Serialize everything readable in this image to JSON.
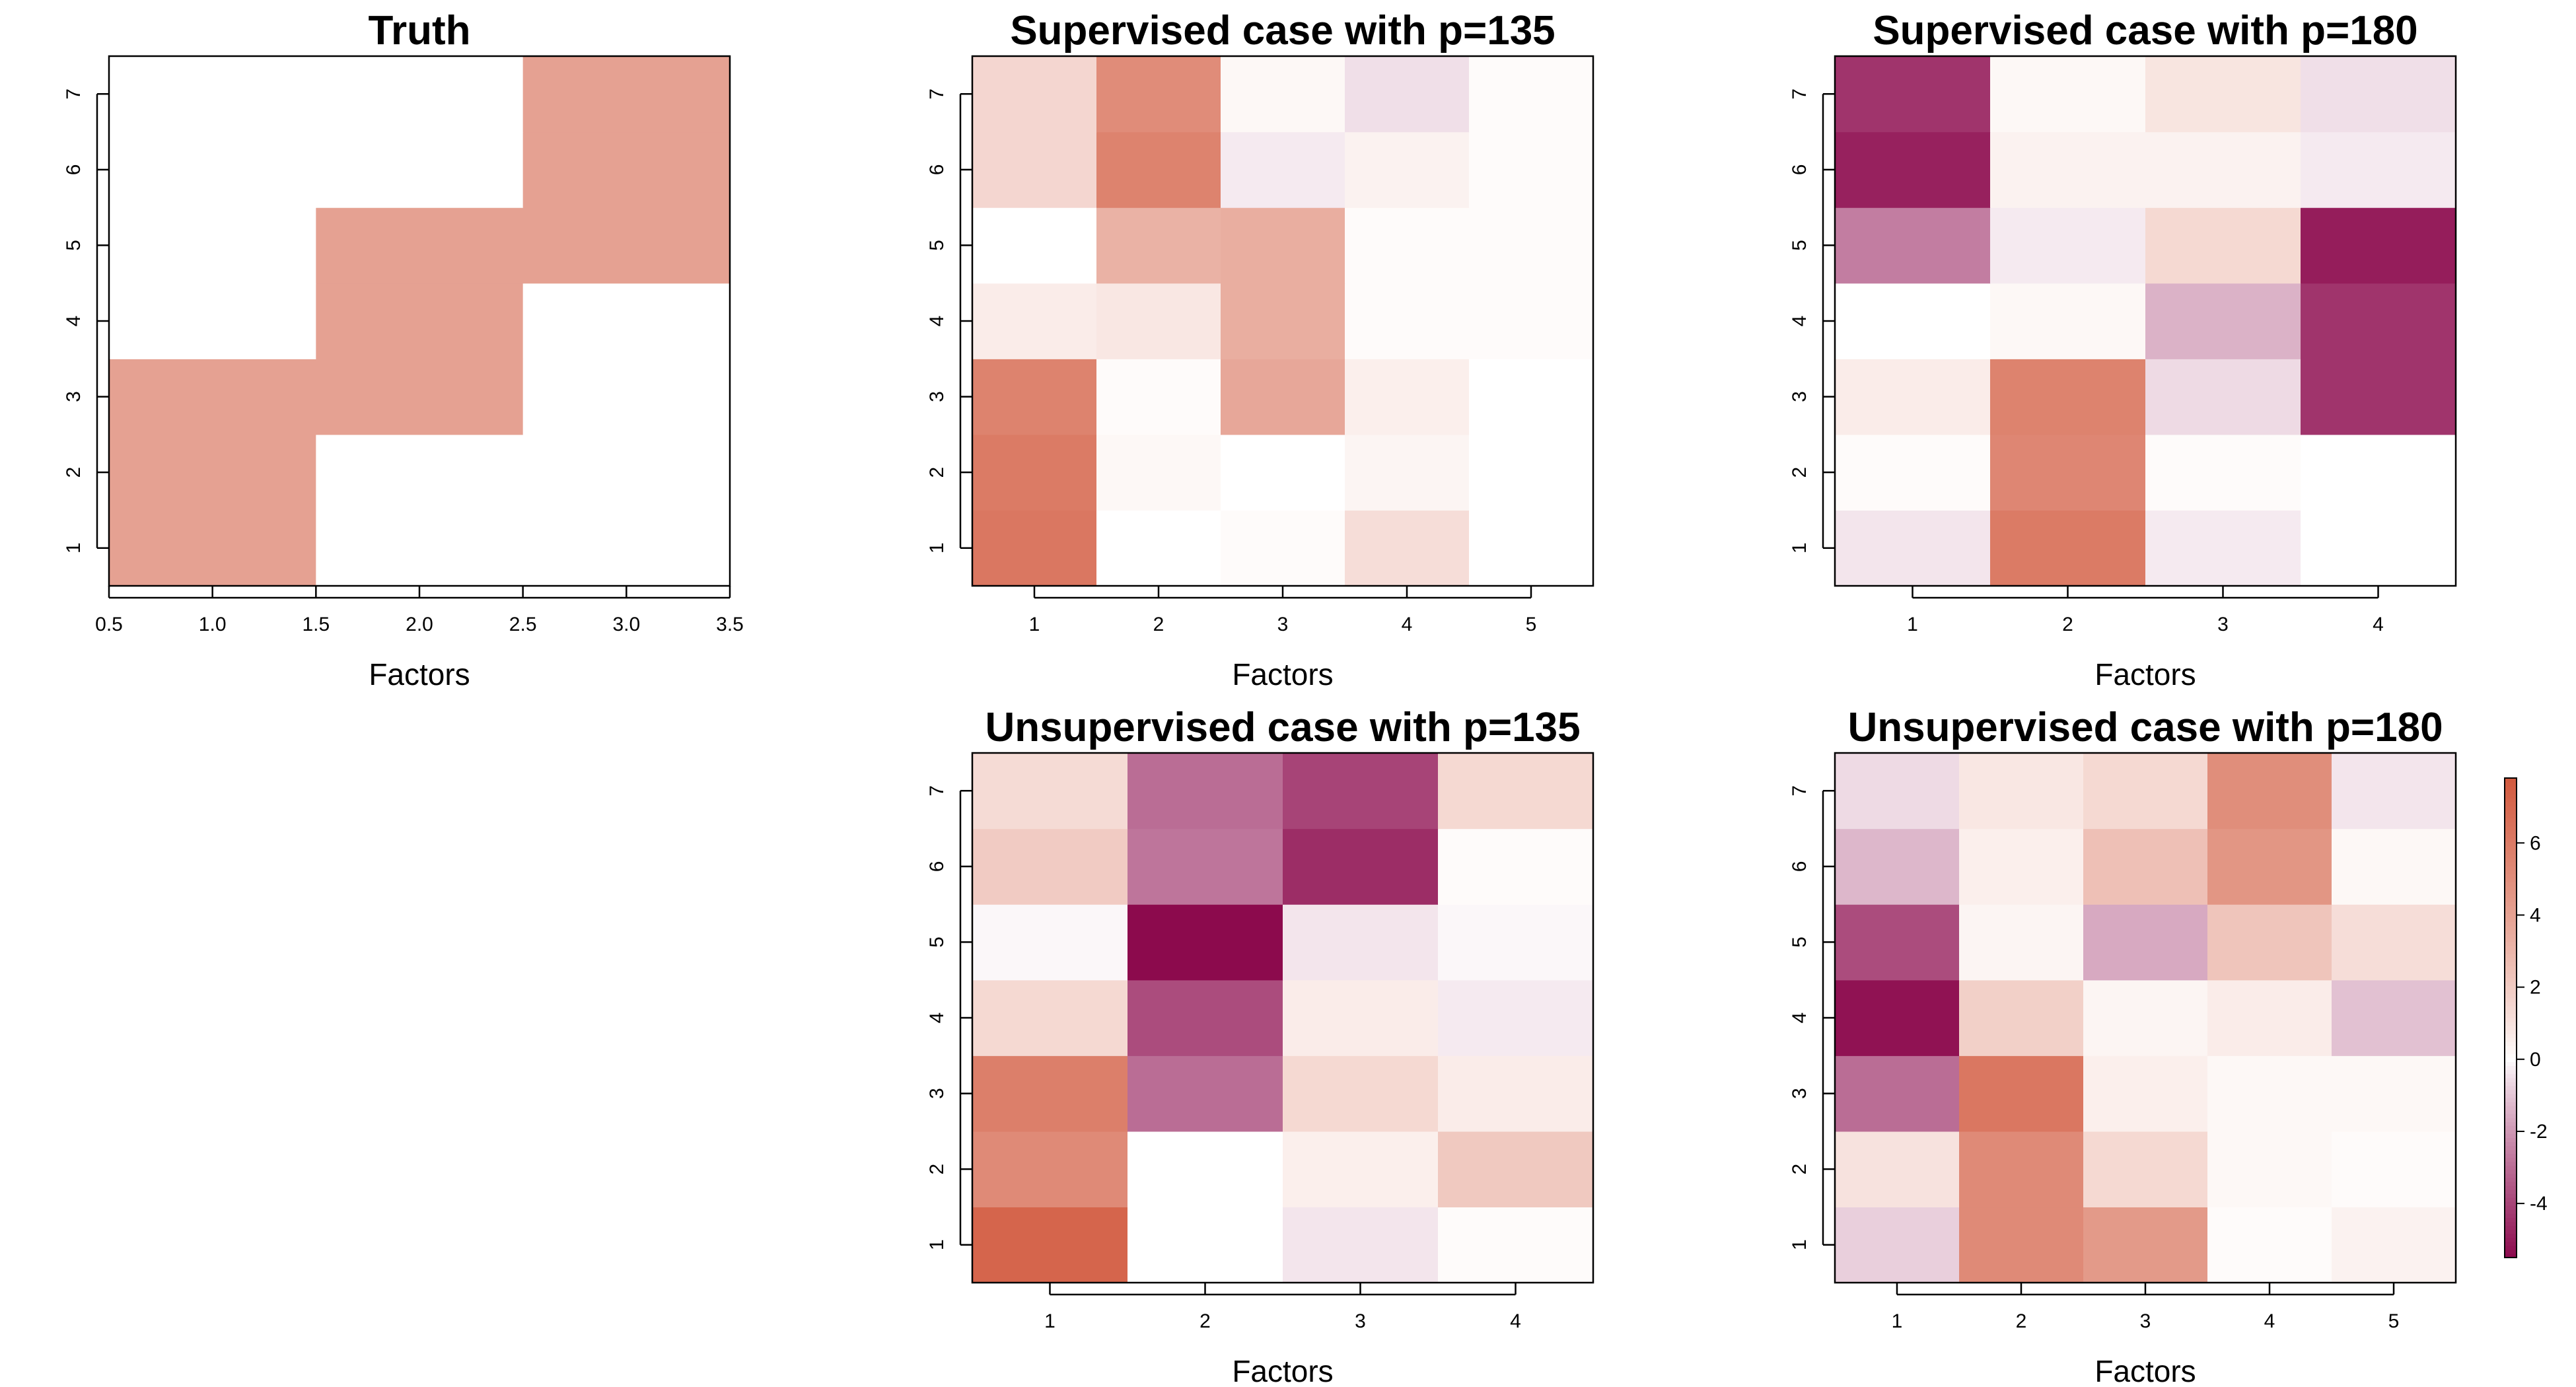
{
  "chart_data": [
    {
      "type": "heatmap",
      "title": "Truth",
      "xlabel": "Factors",
      "ylabel": "",
      "xlim": [
        0.5,
        3.5
      ],
      "x_ticks": [
        "0.5",
        "1.0",
        "1.5",
        "2.0",
        "2.5",
        "3.0",
        "3.5"
      ],
      "y_ticks": [
        "1",
        "2",
        "3",
        "4",
        "5",
        "6",
        "7"
      ],
      "rows": [
        "1",
        "2",
        "3",
        "4",
        "5",
        "6",
        "7"
      ],
      "columns": [
        "1",
        "2",
        "3"
      ],
      "values": [
        [
          4,
          0,
          0
        ],
        [
          4,
          0,
          0
        ],
        [
          4,
          4,
          0
        ],
        [
          0,
          4,
          0
        ],
        [
          0,
          4,
          4
        ],
        [
          0,
          0,
          4
        ],
        [
          0,
          0,
          4
        ]
      ]
    },
    {
      "type": "heatmap",
      "title": "Supervised case with p=135",
      "xlabel": "Factors",
      "ylabel": "",
      "x_ticks": [
        "1",
        "2",
        "3",
        "4",
        "5"
      ],
      "y_ticks": [
        "1",
        "2",
        "3",
        "4",
        "5",
        "6",
        "7"
      ],
      "rows": [
        "1",
        "2",
        "3",
        "4",
        "5",
        "6",
        "7"
      ],
      "columns": [
        "1",
        "2",
        "3",
        "4",
        "5"
      ],
      "values": [
        [
          6.2,
          0.0,
          0.1,
          1.2,
          0.0
        ],
        [
          6.0,
          0.2,
          0.0,
          0.3,
          0.0
        ],
        [
          5.6,
          0.1,
          3.7,
          0.5,
          0.0
        ],
        [
          0.6,
          0.8,
          3.4,
          0.1,
          0.1
        ],
        [
          0.0,
          3.2,
          3.4,
          0.1,
          0.1
        ],
        [
          1.5,
          5.6,
          -0.3,
          0.4,
          0.1
        ],
        [
          1.5,
          5.1,
          0.2,
          -0.5,
          0.1
        ]
      ]
    },
    {
      "type": "heatmap",
      "title": "Supervised case with p=180",
      "xlabel": "Factors",
      "ylabel": "",
      "x_ticks": [
        "1",
        "2",
        "3",
        "4"
      ],
      "y_ticks": [
        "1",
        "2",
        "3",
        "4",
        "5",
        "6",
        "7"
      ],
      "rows": [
        "1",
        "2",
        "3",
        "4",
        "5",
        "6",
        "7"
      ],
      "columns": [
        "1",
        "2",
        "3",
        "4"
      ],
      "values": [
        [
          -0.4,
          6.0,
          -0.3,
          0.0
        ],
        [
          0.1,
          5.4,
          0.1,
          0.0
        ],
        [
          0.6,
          5.6,
          -0.6,
          -4.4
        ],
        [
          0.0,
          0.2,
          -1.4,
          -4.4
        ],
        [
          -2.6,
          -0.3,
          1.4,
          -5.0
        ],
        [
          -4.9,
          0.4,
          0.4,
          -0.3
        ],
        [
          -4.4,
          0.2,
          0.9,
          -0.5
        ]
      ]
    },
    {
      "type": "heatmap",
      "title": "Unsupervised case with p=135",
      "xlabel": "Factors",
      "ylabel": "",
      "x_ticks": [
        "1",
        "2",
        "3",
        "4"
      ],
      "y_ticks": [
        "1",
        "2",
        "3",
        "4",
        "5",
        "6",
        "7"
      ],
      "rows": [
        "1",
        "2",
        "3",
        "4",
        "5",
        "6",
        "7"
      ],
      "columns": [
        "1",
        "2",
        "3",
        "4"
      ],
      "values": [
        [
          7.2,
          0.0,
          -0.4,
          0.1
        ],
        [
          5.2,
          0.0,
          0.5,
          2.1
        ],
        [
          5.8,
          -3.0,
          1.4,
          0.6
        ],
        [
          1.4,
          -3.8,
          0.6,
          -0.3
        ],
        [
          -0.1,
          -5.5,
          -0.4,
          -0.1
        ],
        [
          2.0,
          -2.8,
          -4.6,
          0.1
        ],
        [
          1.3,
          -3.0,
          -4.0,
          1.4
        ]
      ]
    },
    {
      "type": "heatmap",
      "title": "Unsupervised case with p=180",
      "xlabel": "Factors",
      "ylabel": "",
      "x_ticks": [
        "1",
        "2",
        "3",
        "4",
        "5"
      ],
      "y_ticks": [
        "1",
        "2",
        "3",
        "4",
        "5",
        "6",
        "7"
      ],
      "rows": [
        "1",
        "2",
        "3",
        "4",
        "5",
        "6",
        "7"
      ],
      "columns": [
        "1",
        "2",
        "3",
        "4",
        "5"
      ],
      "values": [
        [
          -0.8,
          5.2,
          4.4,
          0.1,
          0.4
        ],
        [
          1.0,
          5.2,
          1.4,
          0.2,
          0.1
        ],
        [
          -3.0,
          6.2,
          0.5,
          0.2,
          0.2
        ],
        [
          -5.3,
          1.8,
          0.3,
          0.6,
          -1.1
        ],
        [
          -3.8,
          0.3,
          -1.6,
          2.3,
          1.2
        ],
        [
          -1.3,
          0.5,
          2.5,
          4.6,
          0.2
        ],
        [
          -0.6,
          0.8,
          1.4,
          5.0,
          -0.4
        ]
      ]
    }
  ],
  "colorbar": {
    "min": -5.5,
    "max": 7.8,
    "ticks": [
      "-4",
      "-2",
      "0",
      "2",
      "4",
      "6"
    ],
    "high_color": "#d25a3f",
    "mid_color": "#ffffff",
    "low_color": "#8c0a4d"
  }
}
